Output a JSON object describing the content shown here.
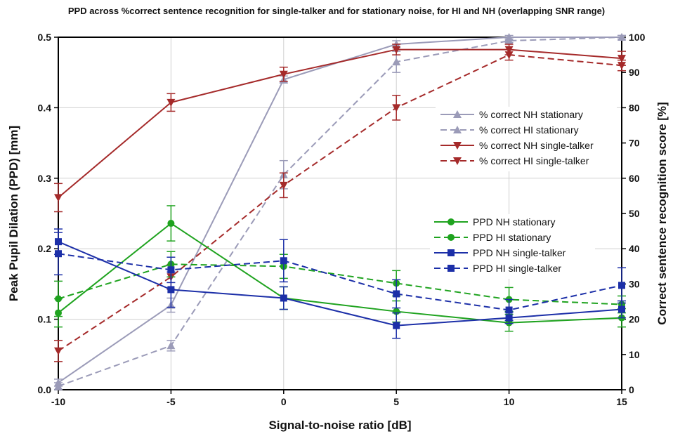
{
  "chart_data": {
    "type": "line",
    "title": "PPD across %correct sentence recognition for single-talker and for stationary noise, for HI and NH (overlapping SNR range)",
    "xlabel": "Signal-to-noise ratio [dB]",
    "ylabel_left": "Peak Pupil Dilation (PPD) [mm]",
    "ylabel_right": "Correct sentence recognition score [%]",
    "x": [
      -10,
      -5,
      0,
      5,
      10,
      15
    ],
    "xlim": [
      -10,
      15
    ],
    "ylim_left": [
      0,
      0.5
    ],
    "ylim_right": [
      0,
      100
    ],
    "x_ticks": [
      "-10",
      "-5",
      "0",
      "5",
      "10",
      "15"
    ],
    "y_left_ticks": [
      "0.0",
      "0.1",
      "0.2",
      "0.3",
      "0.4",
      "0.5"
    ],
    "y_right_ticks": [
      "0",
      "10",
      "20",
      "30",
      "40",
      "50",
      "60",
      "70",
      "80",
      "90",
      "100"
    ],
    "grid": true,
    "legend_score_placement": "upper-right",
    "legend_ppd_placement": "center-right",
    "series": [
      {
        "name": "% correct NH stationary",
        "axis": "right",
        "color": "#9b9bb8",
        "dash": false,
        "marker": "triangle-up",
        "values": [
          2,
          24,
          88,
          98,
          100,
          100
        ],
        "err": [
          1,
          2,
          1,
          1,
          0.5,
          0.5
        ]
      },
      {
        "name": "% correct HI stationary",
        "axis": "right",
        "color": "#9b9bb8",
        "dash": true,
        "marker": "triangle-up",
        "values": [
          1,
          12.5,
          61,
          93,
          99,
          100
        ],
        "err": [
          1,
          1.5,
          4,
          3,
          0.5,
          0.5
        ]
      },
      {
        "name": "% correct NH single-talker",
        "axis": "right",
        "color": "#a52a2a",
        "dash": false,
        "marker": "triangle-down",
        "values": [
          54.5,
          81.5,
          89.5,
          96.5,
          96.5,
          94
        ],
        "err": [
          4,
          2.5,
          2,
          1.5,
          1.5,
          2
        ]
      },
      {
        "name": "% correct HI single-talker",
        "axis": "right",
        "color": "#a52a2a",
        "dash": true,
        "marker": "triangle-down",
        "values": [
          11,
          32,
          58,
          80,
          95,
          92
        ],
        "err": [
          3,
          3.5,
          3.5,
          3.5,
          1.5,
          1.5
        ]
      },
      {
        "name": "PPD NH stationary",
        "axis": "left",
        "color": "#1fa31f",
        "dash": false,
        "marker": "circle",
        "values": [
          0.109,
          0.236,
          0.13,
          0.111,
          0.095,
          0.102
        ],
        "err": [
          0.02,
          0.025,
          0.016,
          0.015,
          0.012,
          0.013
        ]
      },
      {
        "name": "PPD HI stationary",
        "axis": "left",
        "color": "#1fa31f",
        "dash": true,
        "marker": "circle",
        "values": [
          0.129,
          0.178,
          0.175,
          0.151,
          0.128,
          0.121
        ],
        "err": [
          0.025,
          0.018,
          0.017,
          0.018,
          0.017,
          0.012
        ]
      },
      {
        "name": "PPD NH single-talker",
        "axis": "left",
        "color": "#1c2fa8",
        "dash": false,
        "marker": "square",
        "values": [
          0.21,
          0.142,
          0.13,
          0.091,
          0.102,
          0.114
        ],
        "err": [
          0.018,
          0.025,
          0.016,
          0.018,
          0.008,
          0.012
        ]
      },
      {
        "name": "PPD HI single-talker",
        "axis": "left",
        "color": "#1c2fa8",
        "dash": true,
        "marker": "square",
        "values": [
          0.193,
          0.17,
          0.183,
          0.136,
          0.113,
          0.148
        ],
        "err": [
          0.03,
          0.018,
          0.03,
          0.02,
          0.015,
          0.025
        ]
      }
    ]
  }
}
